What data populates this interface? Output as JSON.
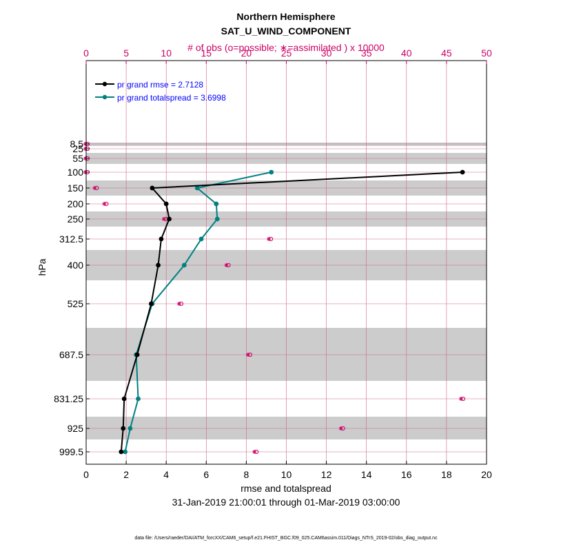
{
  "chart_data": {
    "type": "line",
    "title": "Northern Hemisphere",
    "subtitle": "SAT_U_WIND_COMPONENT",
    "top_axis_label": "# of obs (o=possible; ∗=assimilated ) x 10000",
    "xlabel": "rmse and totalspread",
    "ylabel": "hPa",
    "date_range": "31-Jan-2019 21:00:01 through 01-Mar-2019 03:00:00",
    "footnote": "data file: /Users/raeder/DAI/ATM_forcXX/CAM6_setup/f.e21.FHIST_BGC.f09_025.CAM6assim.011/Diags_NTrS_2019-02/obs_diag_output.nc",
    "xlim": [
      0,
      20
    ],
    "top_xlim": [
      0,
      50
    ],
    "x_ticks": [
      "0",
      "2",
      "4",
      "6",
      "8",
      "10",
      "12",
      "14",
      "16",
      "18",
      "20"
    ],
    "top_ticks": [
      "0",
      "5",
      "10",
      "15",
      "20",
      "25",
      "30",
      "35",
      "40",
      "45",
      "50"
    ],
    "levels": [
      "8.5",
      "25",
      "55",
      "100",
      "150",
      "200",
      "250",
      "312.5",
      "400",
      "525",
      "687.5",
      "831.25",
      "925",
      "999.5"
    ],
    "series": [
      {
        "name": "pr grand rmse",
        "legend": "pr grand rmse = 2.7128",
        "color": "#000000",
        "values": [
          null,
          null,
          null,
          18.8,
          3.3,
          4.0,
          4.15,
          3.75,
          3.6,
          3.25,
          2.55,
          1.9,
          1.85,
          1.75
        ]
      },
      {
        "name": "pr grand totalspread",
        "legend": "pr grand totalspread = 3.6998",
        "color": "#008080",
        "values": [
          null,
          null,
          null,
          9.25,
          5.55,
          6.5,
          6.55,
          5.75,
          4.9,
          3.3,
          2.5,
          2.6,
          2.2,
          1.95
        ]
      }
    ],
    "obs_possible": [
      0.0,
      0.0,
      0.0,
      0.0,
      1.15,
      2.35,
      9.8,
      22.9,
      17.6,
      11.7,
      20.3,
      46.9,
      31.9,
      21.1
    ],
    "obs_assimilated": [
      0.0,
      0.0,
      0.0,
      0.0,
      1.15,
      2.35,
      9.8,
      22.9,
      17.6,
      11.7,
      20.3,
      46.9,
      31.9,
      21.1
    ],
    "colors": {
      "accent": "#cc0066",
      "legend_text": "#0000ff",
      "shade": "#cccccc",
      "grid": "#cc6688"
    }
  }
}
